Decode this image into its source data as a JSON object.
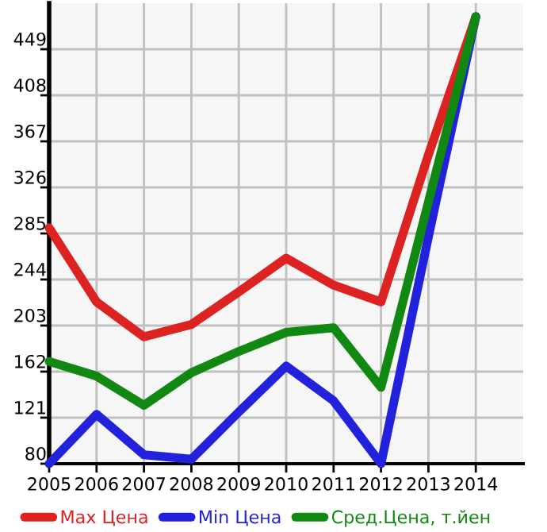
{
  "chart_data": {
    "type": "line",
    "x": [
      2005,
      2006,
      2007,
      2008,
      2009,
      2010,
      2011,
      2012,
      2013,
      2014
    ],
    "series": [
      {
        "name": "Max Цена",
        "color": "#dd2222",
        "values": [
          290,
          224,
          193,
          204,
          233,
          263,
          239,
          224,
          355,
          478
        ]
      },
      {
        "name": "Min Цена",
        "color": "#2222dd",
        "values": [
          80,
          124,
          88,
          84,
          126,
          167,
          136,
          80,
          282,
          478
        ]
      },
      {
        "name": "Сред.Цена, т.йен",
        "color": "#118811",
        "values": [
          171,
          158,
          132,
          161,
          180,
          197,
          201,
          148,
          313,
          478
        ]
      }
    ],
    "xlim": [
      2005,
      2015
    ],
    "xticks": [
      2005,
      2006,
      2007,
      2008,
      2009,
      2010,
      2011,
      2012,
      2013,
      2014
    ],
    "ylim": [
      80,
      490
    ],
    "yticks": [
      80,
      121,
      162,
      203,
      244,
      285,
      326,
      367,
      408,
      449
    ],
    "grid": true,
    "legend": "bottom",
    "marker": "none",
    "line_style": "solid"
  }
}
